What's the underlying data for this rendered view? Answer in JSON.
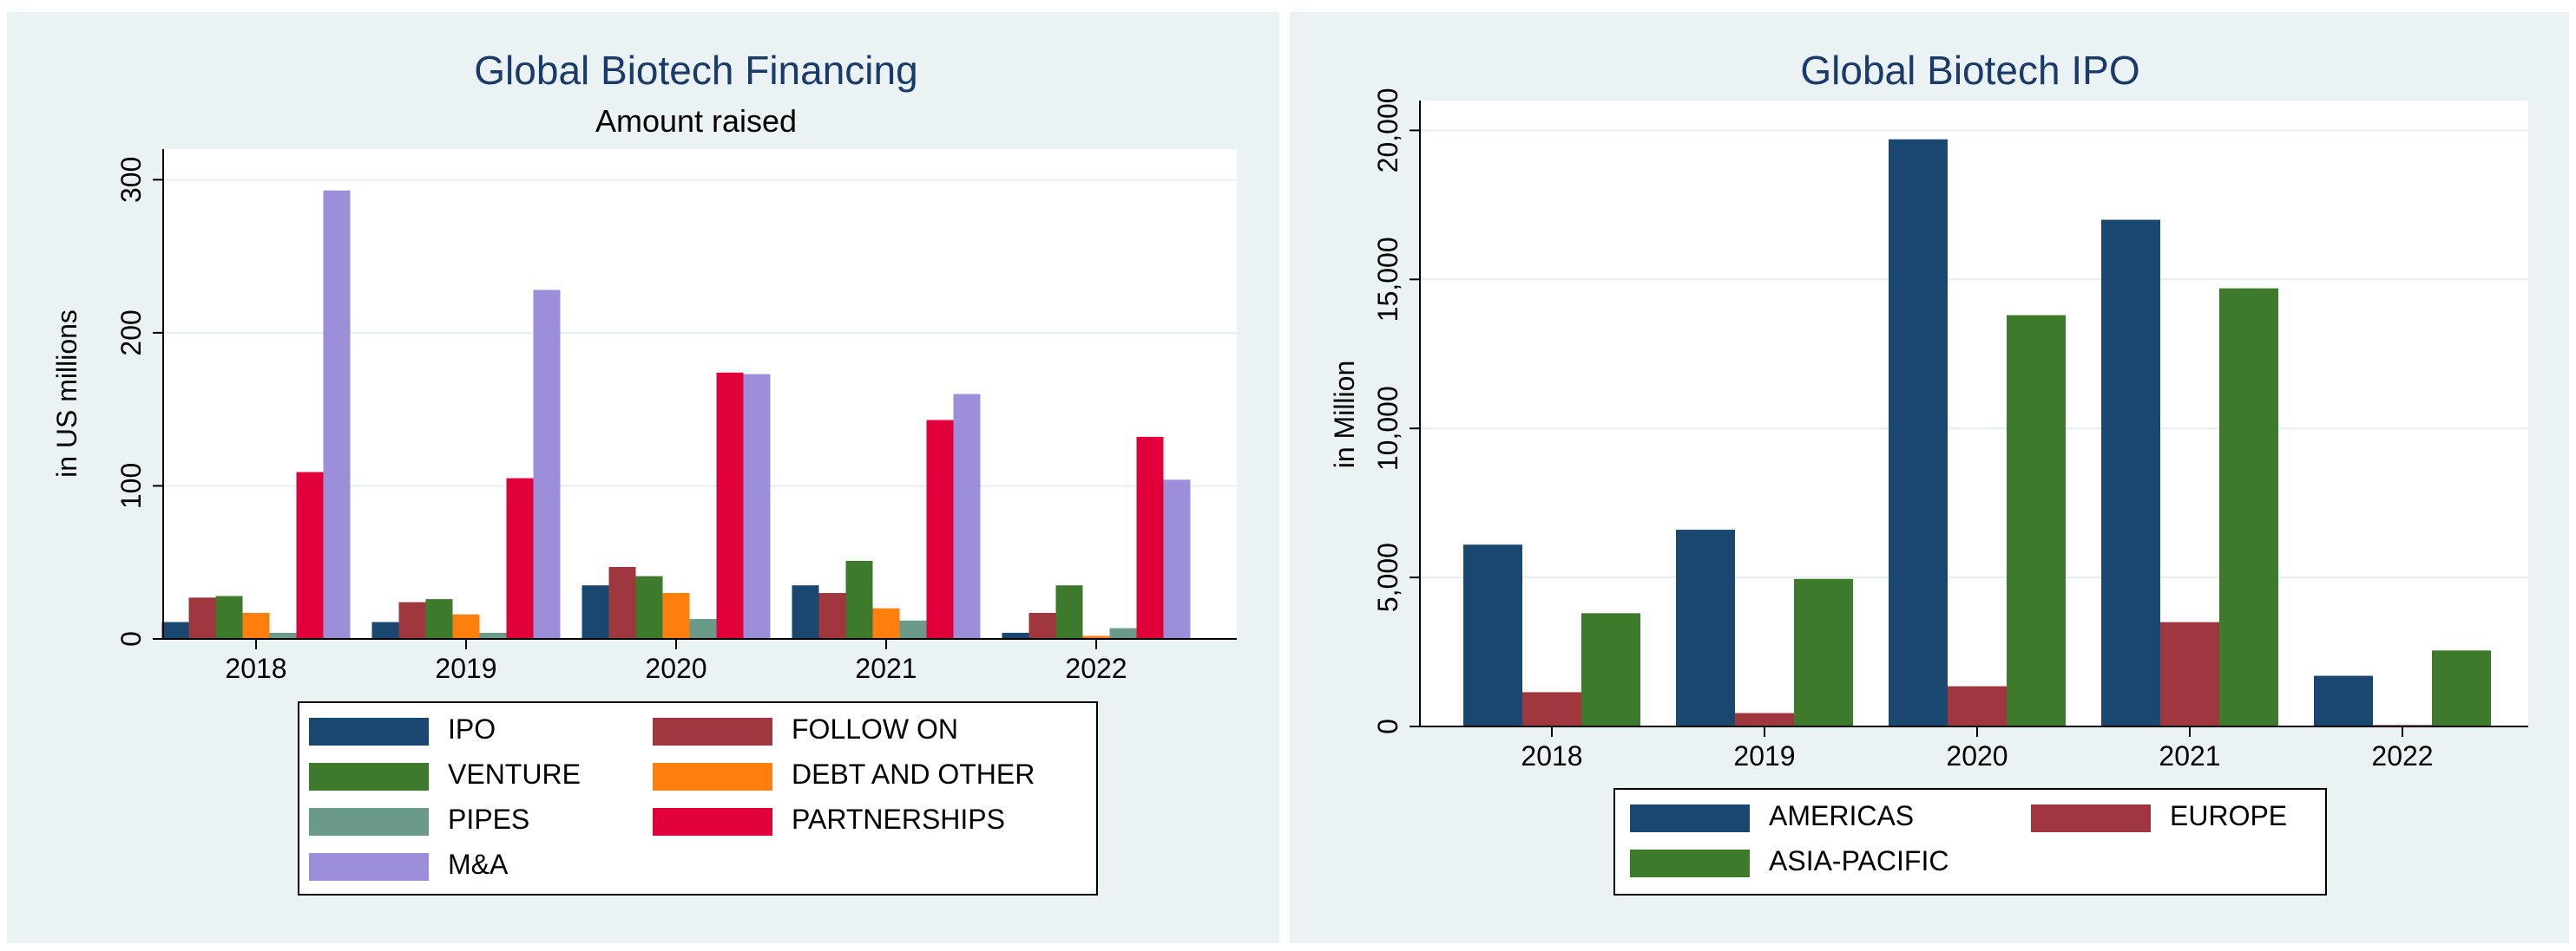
{
  "chart_data": [
    {
      "type": "bar",
      "title": "Global Biotech Financing",
      "subtitle": "Amount raised",
      "xlabel": "",
      "ylabel": "in US millions",
      "ylim": [
        0,
        320
      ],
      "yticks": [
        0,
        100,
        200,
        300
      ],
      "ytick_labels": [
        "0",
        "100",
        "200",
        "300"
      ],
      "grid": true,
      "legend_position": "bottom",
      "categories": [
        "2018",
        "2019",
        "2020",
        "2021",
        "2022"
      ],
      "series": [
        {
          "name": "IPO",
          "color": "#1a476f",
          "values": [
            11,
            11,
            35,
            35,
            4
          ]
        },
        {
          "name": "FOLLOW ON",
          "color": "#a0373f",
          "values": [
            27,
            24,
            47,
            30,
            17
          ]
        },
        {
          "name": "VENTURE",
          "color": "#3e7a2b",
          "values": [
            28,
            26,
            41,
            51,
            35
          ]
        },
        {
          "name": "DEBT AND OTHER",
          "color": "#ff7f0e",
          "values": [
            17,
            16,
            30,
            20,
            2
          ]
        },
        {
          "name": "PIPES",
          "color": "#6a9a8a",
          "values": [
            4,
            4,
            13,
            12,
            7
          ]
        },
        {
          "name": "PARTNERSHIPS",
          "color": "#e2003b",
          "values": [
            109,
            105,
            174,
            143,
            132
          ]
        },
        {
          "name": "M&A",
          "color": "#9c8ed8",
          "values": [
            293,
            228,
            173,
            160,
            104
          ]
        }
      ]
    },
    {
      "type": "bar",
      "title": "Global Biotech IPO",
      "xlabel": "",
      "ylabel": "in Million",
      "ylim": [
        0,
        21000
      ],
      "yticks": [
        0,
        5000,
        10000,
        15000,
        20000
      ],
      "ytick_labels": [
        "0",
        "5,000",
        "10,000",
        "15,000",
        "20,000"
      ],
      "grid": true,
      "legend_position": "bottom",
      "categories": [
        "2018",
        "2019",
        "2020",
        "2021",
        "2022"
      ],
      "series": [
        {
          "name": "AMERICAS",
          "color": "#1a476f",
          "values": [
            6100,
            6600,
            19700,
            17000,
            1700
          ]
        },
        {
          "name": "EUROPE",
          "color": "#a0373f",
          "values": [
            1150,
            450,
            1350,
            3500,
            50
          ]
        },
        {
          "name": "ASIA-PACIFIC",
          "color": "#3e7a2b",
          "values": [
            3800,
            4950,
            13800,
            14700,
            2550
          ]
        }
      ]
    }
  ]
}
